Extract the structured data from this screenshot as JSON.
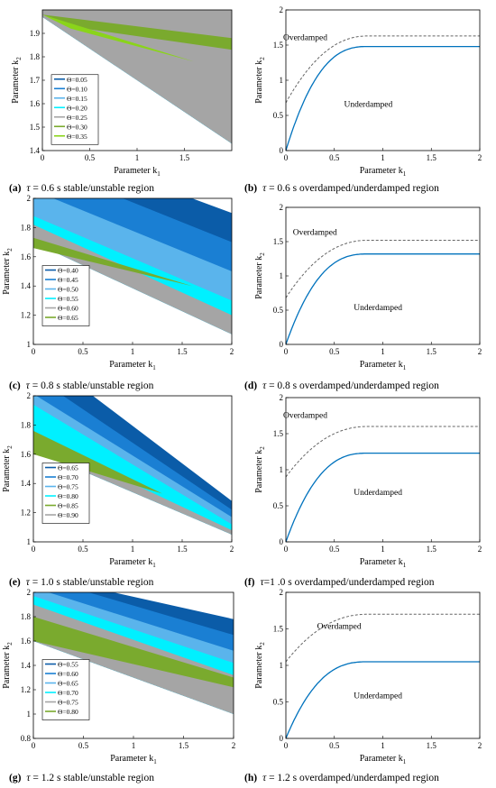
{
  "colors": {
    "sequence": [
      "#0b5ca8",
      "#1a7fd3",
      "#5ab4ec",
      "#00f0ff",
      "#a5a5a5",
      "#7aaa2e",
      "#8ad41a"
    ],
    "curve": "#0072bd",
    "dashed": "#666666"
  },
  "panels": [
    {
      "caption": {
        "letter": "(a)",
        "tau": "τ",
        "rest": " = 0.6 s stable/unstable region"
      },
      "chart_data": {
        "type": "area",
        "xlabel": "Parameter k",
        "xlabel_sub": "1",
        "ylabel": "Parameter k",
        "ylabel_sub": "2",
        "xlim": [
          0,
          2
        ],
        "ylim": [
          1.4,
          2
        ],
        "xticks": [
          "0",
          "0.5",
          "1",
          "1.5"
        ],
        "xtick_values": [
          0,
          0.5,
          1,
          1.5
        ],
        "yticks": [
          "1.4",
          "1.5",
          "1.6",
          "1.7",
          "1.8",
          "1.9"
        ],
        "ytick_values": [
          1.4,
          1.5,
          1.6,
          1.7,
          1.8,
          1.9
        ],
        "legend": [
          "Θ=0.05",
          "Θ=0.10",
          "Θ=0.15",
          "Θ=0.20",
          "Θ=0.25",
          "Θ=0.30",
          "Θ=0.35"
        ],
        "legend_color_index": [
          0,
          1,
          2,
          3,
          4,
          5,
          6
        ],
        "lower_boundary": [
          [
            0,
            1.97
          ],
          [
            2,
            1.43
          ]
        ],
        "bands": [
          {
            "color_index": 0,
            "upper": [
              [
                0.55,
                2.0
              ],
              [
                2,
                1.48
              ]
            ]
          },
          {
            "color_index": 1,
            "upper": [
              [
                0.45,
                2.0
              ],
              [
                2,
                1.56
              ]
            ]
          },
          {
            "color_index": 2,
            "upper": [
              [
                0.35,
                2.0
              ],
              [
                2,
                1.63
              ]
            ]
          },
          {
            "color_index": 3,
            "upper": [
              [
                0.3,
                2.0
              ],
              [
                2,
                1.7
              ]
            ]
          },
          {
            "color_index": 4,
            "upper": [
              [
                0,
                2.0
              ],
              [
                2,
                2.0
              ]
            ]
          }
        ],
        "wedges": [
          {
            "color_index": 5,
            "points": [
              [
                0,
                1.98
              ],
              [
                2,
                1.88
              ],
              [
                2,
                1.83
              ],
              [
                0.45,
                1.92
              ]
            ]
          },
          {
            "color_index": 6,
            "points": [
              [
                0,
                1.98
              ],
              [
                1.6,
                1.78
              ],
              [
                0.3,
                1.92
              ]
            ]
          }
        ]
      }
    },
    {
      "caption": {
        "letter": "(b)",
        "tau": "τ",
        "rest": " = 0.6 s overdamped/underdamped region"
      },
      "chart_data": {
        "type": "line",
        "xlabel": "Parameter k",
        "xlabel_sub": "1",
        "ylabel": "Parameter k",
        "ylabel_sub": "2",
        "xlim": [
          0,
          2
        ],
        "ylim": [
          0,
          2
        ],
        "xticks": [
          "0",
          "0.5",
          "1",
          "1.5",
          "2"
        ],
        "xtick_values": [
          0,
          0.5,
          1,
          1.5,
          2
        ],
        "yticks": [
          "0",
          "0.5",
          "1",
          "1.5",
          "2"
        ],
        "ytick_values": [
          0,
          0.5,
          1,
          1.5,
          2
        ],
        "region_labels": [
          {
            "text": "Overdamped",
            "x": 0.2,
            "y": 1.57
          },
          {
            "text": "Underdamped",
            "x": 0.85,
            "y": 0.62
          }
        ],
        "solid_plateau": 1.48,
        "dashed_plateau": 1.63,
        "knee": 0.85,
        "dashed_start": 0.68
      }
    },
    {
      "caption": {
        "letter": "(c)",
        "tau": "τ",
        "rest": " = 0.8 s stable/unstable region"
      },
      "chart_data": {
        "type": "area",
        "xlabel": "Parameter k",
        "xlabel_sub": "1",
        "ylabel": "Parameter k",
        "ylabel_sub": "2",
        "xlim": [
          0,
          2
        ],
        "ylim": [
          1,
          2
        ],
        "xticks": [
          "0",
          "0.5",
          "1",
          "1.5",
          "2"
        ],
        "xtick_values": [
          0,
          0.5,
          1,
          1.5,
          2
        ],
        "yticks": [
          "1",
          "1.2",
          "1.4",
          "1.6",
          "1.8",
          "2"
        ],
        "ytick_values": [
          1,
          1.2,
          1.4,
          1.6,
          1.8,
          2
        ],
        "legend": [
          "Θ=0.40",
          "Θ=0.45",
          "Θ=0.50",
          "Θ=0.55",
          "Θ=0.60",
          "Θ=0.65"
        ],
        "legend_color_index": [
          0,
          1,
          2,
          3,
          4,
          5
        ],
        "lower_boundary": [
          [
            0,
            1.7
          ],
          [
            2,
            1.07
          ]
        ],
        "bands": [
          {
            "color_index": 0,
            "upper": [
              [
                1.6,
                2.0
              ],
              [
                2,
                1.9
              ]
            ]
          },
          {
            "color_index": 1,
            "upper": [
              [
                0.9,
                2.0
              ],
              [
                2,
                1.7
              ]
            ]
          },
          {
            "color_index": 2,
            "upper": [
              [
                0.2,
                2.0
              ],
              [
                2,
                1.5
              ]
            ]
          },
          {
            "color_index": 3,
            "upper": [
              [
                0,
                1.88
              ],
              [
                2,
                1.3
              ]
            ]
          },
          {
            "color_index": 4,
            "upper": [
              [
                0,
                1.82
              ],
              [
                2,
                1.2
              ]
            ]
          }
        ],
        "wedges": [
          {
            "color_index": 5,
            "points": [
              [
                0,
                1.73
              ],
              [
                1.6,
                1.4
              ],
              [
                0,
                1.66
              ]
            ]
          }
        ]
      }
    },
    {
      "caption": {
        "letter": "(d)",
        "tau": "τ",
        "rest": " = 0.8 s overdamped/underdamped region"
      },
      "chart_data": {
        "type": "line",
        "xlabel": "Parameter k",
        "xlabel_sub": "1",
        "ylabel": "Parameter k",
        "ylabel_sub": "2",
        "xlim": [
          0,
          2
        ],
        "ylim": [
          0,
          2
        ],
        "xticks": [
          "0",
          "0.5",
          "1",
          "1.5",
          "2"
        ],
        "xtick_values": [
          0,
          0.5,
          1,
          1.5,
          2
        ],
        "yticks": [
          "0",
          "0.5",
          "1",
          "1.5",
          "2"
        ],
        "ytick_values": [
          0,
          0.5,
          1,
          1.5,
          2
        ],
        "region_labels": [
          {
            "text": "Overdamped",
            "x": 0.3,
            "y": 1.6
          },
          {
            "text": "Underdamped",
            "x": 0.95,
            "y": 0.5
          }
        ],
        "solid_plateau": 1.32,
        "dashed_plateau": 1.52,
        "knee": 0.85,
        "dashed_start": 0.68
      }
    },
    {
      "caption": {
        "letter": "(e)",
        "tau": "τ",
        "rest": " = 1.0 s stable/unstable region"
      },
      "chart_data": {
        "type": "area",
        "xlabel": "Parameter k",
        "xlabel_sub": "1",
        "ylabel": "Parameter k",
        "ylabel_sub": "2",
        "xlim": [
          0,
          2
        ],
        "ylim": [
          1,
          2
        ],
        "xticks": [
          "0",
          "0.5",
          "1",
          "1.5",
          "2"
        ],
        "xtick_values": [
          0,
          0.5,
          1,
          1.5,
          2
        ],
        "yticks": [
          "1",
          "1.2",
          "1.4",
          "1.6",
          "1.8",
          "2"
        ],
        "ytick_values": [
          1,
          1.2,
          1.4,
          1.6,
          1.8,
          2
        ],
        "legend": [
          "Θ=0.65",
          "Θ=0.70",
          "Θ=0.75",
          "Θ=0.80",
          "Θ=0.85",
          "Θ=0.90"
        ],
        "legend_color_index": [
          0,
          1,
          2,
          3,
          5,
          4
        ],
        "lower_boundary": [
          [
            0,
            1.63
          ],
          [
            2,
            1.05
          ]
        ],
        "bands": [
          {
            "color_index": 0,
            "upper": [
              [
                0.6,
                2.0
              ],
              [
                2,
                1.28
              ]
            ]
          },
          {
            "color_index": 1,
            "upper": [
              [
                0.3,
                2.0
              ],
              [
                2,
                1.22
              ]
            ]
          },
          {
            "color_index": 2,
            "upper": [
              [
                0.03,
                2.0
              ],
              [
                2,
                1.17
              ]
            ]
          },
          {
            "color_index": 3,
            "upper": [
              [
                0,
                1.94
              ],
              [
                2,
                1.12
              ]
            ]
          },
          {
            "color_index": 4,
            "upper": [
              [
                0,
                1.72
              ],
              [
                2,
                1.08
              ]
            ]
          }
        ],
        "wedges": [
          {
            "color_index": 5,
            "points": [
              [
                0,
                1.76
              ],
              [
                1.3,
                1.33
              ],
              [
                0,
                1.6
              ]
            ]
          }
        ]
      }
    },
    {
      "caption": {
        "letter": "(f)",
        "tau": "τ",
        "rest": "=1 .0 s overdamped/underdamped region"
      },
      "chart_data": {
        "type": "line",
        "xlabel": "Parameter k",
        "xlabel_sub": "1",
        "ylabel": "Parameter k",
        "ylabel_sub": "2",
        "xlim": [
          0,
          2
        ],
        "ylim": [
          0,
          2
        ],
        "xticks": [
          "0",
          "0.5",
          "1",
          "1.5",
          "2"
        ],
        "xtick_values": [
          0,
          0.5,
          1,
          1.5,
          2
        ],
        "yticks": [
          "0",
          "0.5",
          "1",
          "1.5",
          "2"
        ],
        "ytick_values": [
          0,
          0.5,
          1,
          1.5,
          2
        ],
        "region_labels": [
          {
            "text": "Overdamped",
            "x": 0.2,
            "y": 1.72
          },
          {
            "text": "Underdamped",
            "x": 0.95,
            "y": 0.65
          }
        ],
        "solid_plateau": 1.23,
        "dashed_plateau": 1.6,
        "knee": 0.85,
        "dashed_start": 0.9
      }
    },
    {
      "caption": {
        "letter": "(g)",
        "tau": "τ",
        "rest": " = 1.2 s stable/unstable region"
      },
      "chart_data": {
        "type": "area",
        "xlabel": "Parameter k",
        "xlabel_sub": "1",
        "ylabel": "Parameter k",
        "ylabel_sub": "2",
        "xlim": [
          0,
          2
        ],
        "ylim": [
          0.8,
          2
        ],
        "xticks": [
          "0",
          "0.5",
          "1",
          "1.5",
          "2"
        ],
        "xtick_values": [
          0,
          0.5,
          1,
          1.5,
          2
        ],
        "yticks": [
          "0.8",
          "1",
          "1.2",
          "1.4",
          "1.6",
          "1.8",
          "2"
        ],
        "ytick_values": [
          0.8,
          1,
          1.2,
          1.4,
          1.6,
          1.8,
          2
        ],
        "legend": [
          "Θ=0.55",
          "Θ=0.60",
          "Θ=0.65",
          "Θ=0.70",
          "Θ=0.75",
          "Θ=0.80"
        ],
        "legend_color_index": [
          0,
          1,
          2,
          3,
          4,
          5
        ],
        "lower_boundary": [
          [
            0,
            1.6
          ],
          [
            2,
            1.0
          ]
        ],
        "bands": [
          {
            "color_index": 0,
            "upper": [
              [
                0.8,
                2.0
              ],
              [
                2,
                1.78
              ]
            ]
          },
          {
            "color_index": 1,
            "upper": [
              [
                0.55,
                2.0
              ],
              [
                2,
                1.65
              ]
            ]
          },
          {
            "color_index": 2,
            "upper": [
              [
                0.15,
                2.0
              ],
              [
                2,
                1.52
              ]
            ]
          },
          {
            "color_index": 3,
            "upper": [
              [
                0,
                1.97
              ],
              [
                2,
                1.42
              ]
            ]
          },
          {
            "color_index": 4,
            "upper": [
              [
                0,
                1.9
              ],
              [
                2,
                1.32
              ]
            ]
          }
        ],
        "wedges": [
          {
            "color_index": 5,
            "points": [
              [
                0,
                1.8
              ],
              [
                2,
                1.3
              ],
              [
                2,
                1.22
              ],
              [
                0,
                1.6
              ]
            ]
          }
        ]
      }
    },
    {
      "caption": {
        "letter": "(h)",
        "tau": "τ",
        "rest": " = 1.2 s overdamped/underdamped region"
      },
      "chart_data": {
        "type": "line",
        "xlabel": "Parameter k",
        "xlabel_sub": "1",
        "ylabel": "Parameter k",
        "ylabel_sub": "2",
        "xlim": [
          0,
          2
        ],
        "ylim": [
          0,
          2
        ],
        "xticks": [
          "0",
          "0.5",
          "1",
          "1.5",
          "2"
        ],
        "xtick_values": [
          0,
          0.5,
          1,
          1.5,
          2
        ],
        "yticks": [
          "0",
          "0.5",
          "1",
          "1.5",
          "2"
        ],
        "ytick_values": [
          0,
          0.5,
          1,
          1.5,
          2
        ],
        "region_labels": [
          {
            "text": "Overdamped",
            "x": 0.55,
            "y": 1.5
          },
          {
            "text": "Underdamped",
            "x": 0.95,
            "y": 0.55
          }
        ],
        "solid_plateau": 1.05,
        "dashed_plateau": 1.7,
        "knee": 0.85,
        "dashed_start": 1.05
      }
    }
  ]
}
